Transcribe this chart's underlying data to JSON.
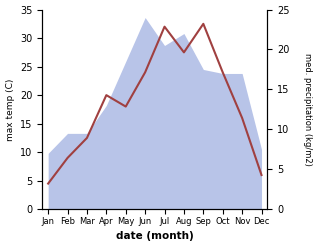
{
  "months": [
    "Jan",
    "Feb",
    "Mar",
    "Apr",
    "May",
    "Jun",
    "Jul",
    "Aug",
    "Sep",
    "Oct",
    "Nov",
    "Dec"
  ],
  "temperature": [
    4.5,
    9.0,
    12.5,
    20.0,
    18.0,
    24.0,
    32.0,
    27.5,
    32.5,
    24.0,
    16.0,
    6.0
  ],
  "precipitation": [
    7.0,
    9.5,
    9.5,
    13.0,
    18.5,
    24.0,
    20.5,
    22.0,
    17.5,
    17.0,
    17.0,
    7.5
  ],
  "temp_color": "#a04040",
  "precip_color": "#b8c4e8",
  "temp_ylim": [
    0,
    35
  ],
  "precip_ylim": [
    0,
    25
  ],
  "temp_yticks": [
    0,
    5,
    10,
    15,
    20,
    25,
    30,
    35
  ],
  "precip_yticks": [
    0,
    5,
    10,
    15,
    20,
    25
  ],
  "xlabel": "date (month)",
  "ylabel_left": "max temp (C)",
  "ylabel_right": "med. precipitation (kg/m2)",
  "bg_color": "#ffffff"
}
